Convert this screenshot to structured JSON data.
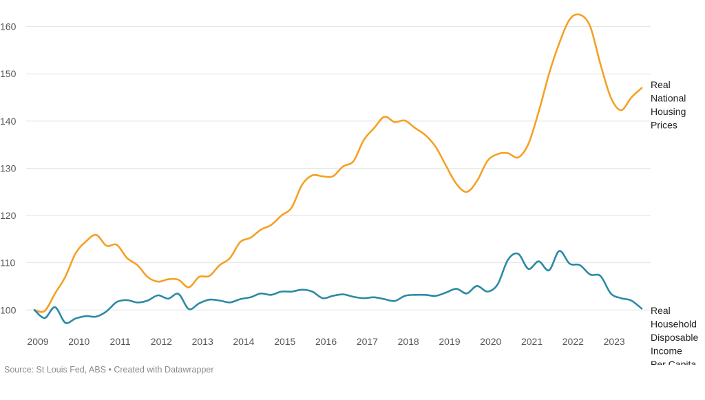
{
  "chart_data": {
    "type": "line",
    "ylim": [
      98,
      163
    ],
    "yticks": [
      100,
      110,
      120,
      130,
      140,
      150,
      160
    ],
    "xlim": [
      2009,
      2023.75
    ],
    "xticks": [
      "2009",
      "2010",
      "2011",
      "2012",
      "2013",
      "2014",
      "2015",
      "2016",
      "2017",
      "2018",
      "2019",
      "2020",
      "2021",
      "2022",
      "2023"
    ],
    "grid": true,
    "series": [
      {
        "name": "Real National Housing Prices",
        "label_lines": [
          "Real",
          "National",
          "Housing",
          "Prices"
        ],
        "color": "#f5a024",
        "x": [
          2009.0,
          2009.25,
          2009.5,
          2009.75,
          2010.0,
          2010.25,
          2010.5,
          2010.75,
          2011.0,
          2011.25,
          2011.5,
          2011.75,
          2012.0,
          2012.25,
          2012.5,
          2012.75,
          2013.0,
          2013.25,
          2013.5,
          2013.75,
          2014.0,
          2014.25,
          2014.5,
          2014.75,
          2015.0,
          2015.25,
          2015.5,
          2015.75,
          2016.0,
          2016.25,
          2016.5,
          2016.75,
          2017.0,
          2017.25,
          2017.5,
          2017.75,
          2018.0,
          2018.25,
          2018.5,
          2018.75,
          2019.0,
          2019.25,
          2019.5,
          2019.75,
          2020.0,
          2020.25,
          2020.5,
          2020.75,
          2021.0,
          2021.25,
          2021.5,
          2021.75,
          2022.0,
          2022.25,
          2022.5,
          2022.75,
          2023.0,
          2023.25,
          2023.5,
          2023.75
        ],
        "values": [
          100.0,
          99.8,
          103.5,
          107.0,
          112.0,
          114.5,
          115.9,
          113.6,
          113.8,
          111.0,
          109.5,
          107.0,
          106.0,
          106.5,
          106.4,
          104.8,
          107.0,
          107.2,
          109.5,
          111.0,
          114.4,
          115.3,
          117.0,
          118.0,
          120.0,
          121.7,
          126.5,
          128.5,
          128.3,
          128.3,
          130.4,
          131.5,
          136.0,
          138.5,
          140.9,
          139.8,
          140.1,
          138.5,
          137.0,
          134.5,
          130.5,
          126.7,
          125.0,
          127.3,
          131.5,
          133.0,
          133.2,
          132.3,
          135.2,
          142.0,
          150.0,
          156.5,
          161.5,
          162.5,
          160.0,
          152.0,
          145.0,
          142.3,
          145.0,
          147.0
        ]
      },
      {
        "name": "Real Household Disposable Income Per Capita",
        "label_lines": [
          "Real",
          "Household",
          "Disposable",
          "Income",
          "Per Capita"
        ],
        "color": "#2b8aa5",
        "x": [
          2009.0,
          2009.25,
          2009.5,
          2009.75,
          2010.0,
          2010.25,
          2010.5,
          2010.75,
          2011.0,
          2011.25,
          2011.5,
          2011.75,
          2012.0,
          2012.25,
          2012.5,
          2012.75,
          2013.0,
          2013.25,
          2013.5,
          2013.75,
          2014.0,
          2014.25,
          2014.5,
          2014.75,
          2015.0,
          2015.25,
          2015.5,
          2015.75,
          2016.0,
          2016.25,
          2016.5,
          2016.75,
          2017.0,
          2017.25,
          2017.5,
          2017.75,
          2018.0,
          2018.25,
          2018.5,
          2018.75,
          2019.0,
          2019.25,
          2019.5,
          2019.75,
          2020.0,
          2020.25,
          2020.5,
          2020.75,
          2021.0,
          2021.25,
          2021.5,
          2021.75,
          2022.0,
          2022.25,
          2022.5,
          2022.75,
          2023.0,
          2023.25,
          2023.5,
          2023.75
        ],
        "values": [
          100.0,
          98.3,
          100.6,
          97.3,
          98.2,
          98.7,
          98.6,
          99.7,
          101.7,
          102.1,
          101.6,
          102.0,
          103.1,
          102.4,
          103.4,
          100.2,
          101.4,
          102.2,
          102.0,
          101.6,
          102.3,
          102.7,
          103.5,
          103.2,
          103.9,
          103.9,
          104.3,
          103.9,
          102.5,
          103.0,
          103.3,
          102.8,
          102.5,
          102.7,
          102.3,
          101.9,
          103.0,
          103.2,
          103.2,
          103.0,
          103.7,
          104.5,
          103.5,
          105.1,
          103.9,
          105.4,
          110.6,
          111.9,
          108.7,
          110.3,
          108.4,
          112.5,
          109.8,
          109.5,
          107.5,
          107.2,
          103.5,
          102.5,
          102.0,
          100.3
        ]
      }
    ],
    "source": "Source: St Louis Fed, ABS • Created with Datawrapper"
  }
}
